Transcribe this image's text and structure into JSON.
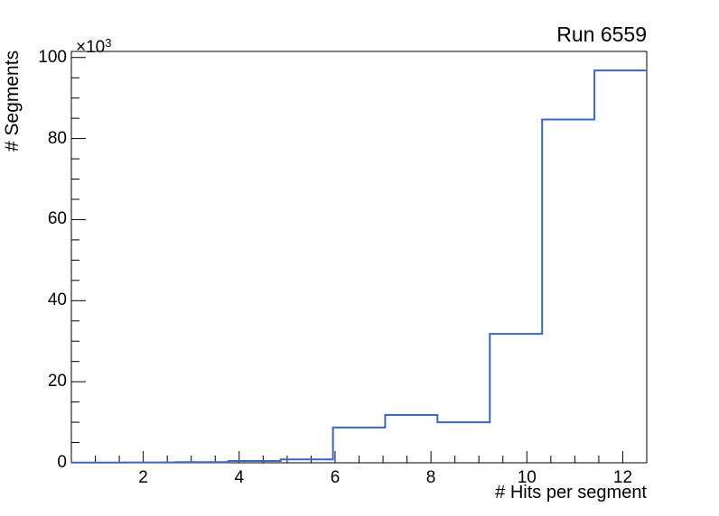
{
  "chart_data": {
    "type": "bar",
    "style": "step-outline-histogram",
    "title": "Run 6559",
    "xlabel": "# Hits per segment",
    "ylabel": "# Segments",
    "y_exponent": {
      "base": "×10",
      "sup": "3"
    },
    "bin_edges": [
      0.5,
      1.591,
      2.682,
      3.773,
      4.864,
      5.955,
      7.045,
      8.136,
      9.227,
      10.318,
      11.409,
      12.5
    ],
    "values": [
      40,
      80,
      150,
      450,
      850,
      8700,
      11800,
      10000,
      31800,
      84700,
      96800
    ],
    "xlim": [
      0.5,
      12.5
    ],
    "ylim": [
      0,
      101500
    ],
    "x_major_ticks": [
      2,
      4,
      6,
      8,
      10,
      12
    ],
    "x_minor_tick_step": 0.5,
    "y_major_ticks_thousands": [
      0,
      20,
      40,
      60,
      80,
      100
    ],
    "y_minor_tick_step": 5000,
    "grid": false,
    "legend": "none",
    "line_color": "#3a66c4",
    "axis_color": "#000000",
    "background_color": "#ffffff"
  }
}
